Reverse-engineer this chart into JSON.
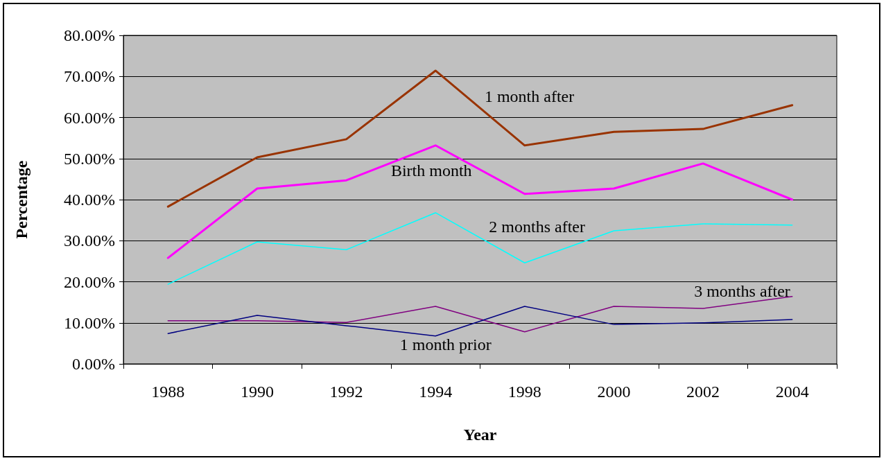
{
  "chart_data": {
    "type": "line",
    "xlabel": "Year",
    "ylabel": "Percentage",
    "categories": [
      "1988",
      "1990",
      "1992",
      "1994",
      "1998",
      "2000",
      "2002",
      "2004"
    ],
    "series": [
      {
        "name": "1 month after",
        "color": "#993300",
        "values": [
          38.3,
          50.3,
          54.7,
          71.4,
          53.2,
          56.5,
          57.2,
          63.0
        ]
      },
      {
        "name": "Birth month",
        "color": "#ff00ff",
        "values": [
          25.8,
          42.7,
          44.7,
          53.2,
          41.4,
          42.7,
          48.8,
          40.0
        ]
      },
      {
        "name": "2 months after",
        "color": "#00ffff",
        "values": [
          19.4,
          29.7,
          27.8,
          36.8,
          24.6,
          32.4,
          34.1,
          33.8
        ]
      },
      {
        "name": "3 months after",
        "color": "#800080",
        "values": [
          10.5,
          10.5,
          10.1,
          14.0,
          7.8,
          14.0,
          13.5,
          16.4
        ]
      },
      {
        "name": "1 month prior",
        "color": "#000080",
        "values": [
          7.4,
          11.8,
          9.3,
          6.8,
          14.0,
          9.6,
          10.0,
          10.8
        ]
      }
    ],
    "ylim": [
      0,
      80
    ],
    "yticks": [
      {
        "value": 0,
        "label": "0.00%"
      },
      {
        "value": 10,
        "label": "10.00%"
      },
      {
        "value": 20,
        "label": "20.00%"
      },
      {
        "value": 30,
        "label": "30.00%"
      },
      {
        "value": 40,
        "label": "40.00%"
      },
      {
        "value": 50,
        "label": "50.00%"
      },
      {
        "value": 60,
        "label": "60.00%"
      },
      {
        "value": 70,
        "label": "70.00%"
      },
      {
        "value": 80,
        "label": "80.00%"
      }
    ],
    "grid": "y",
    "legend": false,
    "marker": "none",
    "line_style": "solid"
  }
}
